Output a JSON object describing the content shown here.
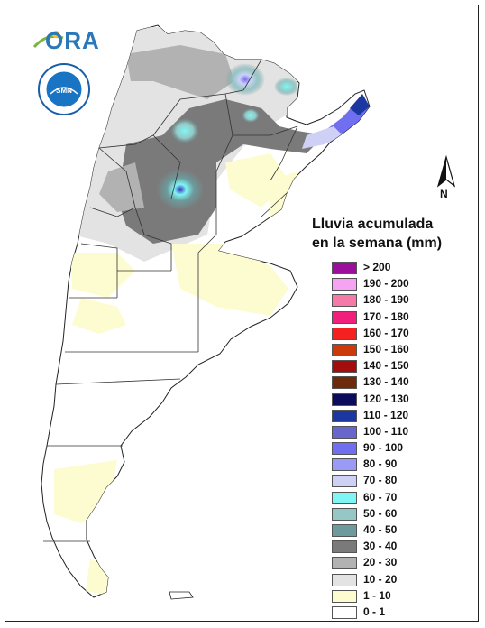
{
  "logos": {
    "brand_text": "ORA",
    "seal_text": "SERVICIO METEOROLÓGICO NACIONAL · ARGENTINA",
    "seal_center": "SMN"
  },
  "compass": {
    "north_label": "N"
  },
  "legend": {
    "title_line1": "Lluvia acumulada",
    "title_line2": "en la semana (mm)",
    "items": [
      {
        "label": "> 200",
        "color": "#9c0f9c"
      },
      {
        "label": "190 - 200",
        "color": "#f7a3f4"
      },
      {
        "label": "180 - 190",
        "color": "#f57aa8"
      },
      {
        "label": "170 - 180",
        "color": "#f1207c"
      },
      {
        "label": "160 - 170",
        "color": "#f52020"
      },
      {
        "label": "150 - 160",
        "color": "#cc3a0a"
      },
      {
        "label": "140 - 150",
        "color": "#a30d0d"
      },
      {
        "label": "130 - 140",
        "color": "#6e2b0c"
      },
      {
        "label": "120 - 130",
        "color": "#0c0c5c"
      },
      {
        "label": "110 - 120",
        "color": "#1c38a0"
      },
      {
        "label": "100 - 110",
        "color": "#6666cc"
      },
      {
        "label": "90 - 100",
        "color": "#6f6ff0"
      },
      {
        "label": "80 - 90",
        "color": "#9b9bf7"
      },
      {
        "label": "70 - 80",
        "color": "#cfd0f6"
      },
      {
        "label": "60 - 70",
        "color": "#7ff6f3"
      },
      {
        "label": "50 - 60",
        "color": "#94c7c5"
      },
      {
        "label": "40 - 50",
        "color": "#6d9a9c"
      },
      {
        "label": "30 - 40",
        "color": "#7a7a7a"
      },
      {
        "label": "20 - 30",
        "color": "#b2b2b2"
      },
      {
        "label": "10 - 20",
        "color": "#e3e3e3"
      },
      {
        "label": "1 - 10",
        "color": "#fdfbd0"
      },
      {
        "label": "0 - 1",
        "color": "#ffffff"
      }
    ]
  }
}
